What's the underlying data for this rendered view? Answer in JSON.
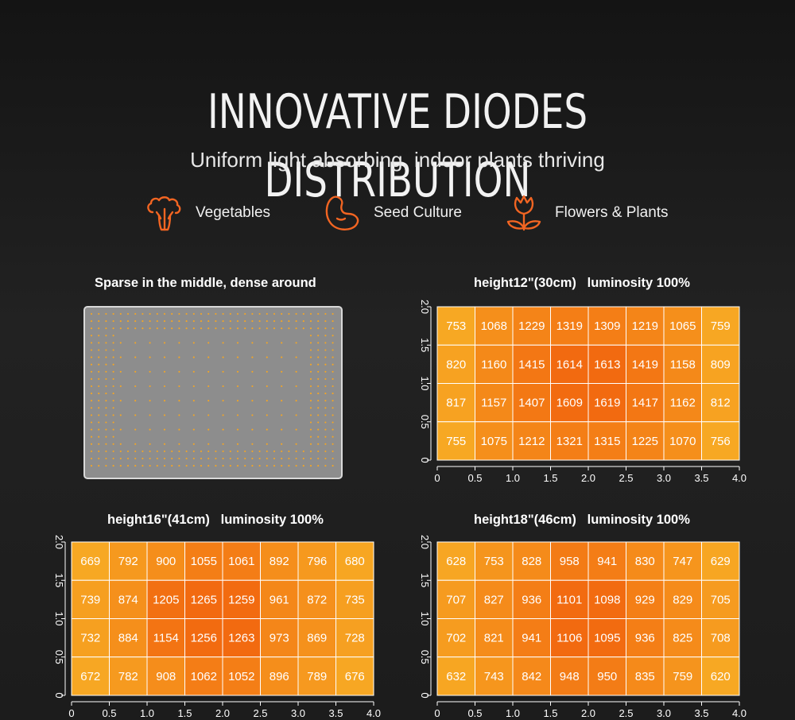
{
  "header": {
    "title": "INNOVATIVE DIODES DISTRIBUTION",
    "subtitle": "Uniform light absorbing, indoor plants thriving"
  },
  "features": [
    {
      "icon": "broccoli-icon",
      "label": "Vegetables"
    },
    {
      "icon": "bean-seed-icon",
      "label": "Seed Culture"
    },
    {
      "icon": "tulip-flower-icon",
      "label": "Flowers & Plants"
    }
  ],
  "colors": {
    "accent": "#f26522",
    "cell_low": "#f7a823",
    "cell_high": "#f26a10",
    "panel": "#8d8d8d",
    "diode": "#f5a623"
  },
  "diode_panel": {
    "title": "Sparse in the middle, dense around"
  },
  "chart_data": [
    {
      "type": "heatmap",
      "title": "height12\"(30cm)   luminosity 100%",
      "xlim": [
        0,
        4.0
      ],
      "ylim": [
        0,
        2.0
      ],
      "xticks": [
        "0",
        "0.5",
        "1.0",
        "1.5",
        "2.0",
        "2.5",
        "3.0",
        "3.5",
        "4.0"
      ],
      "yticks": [
        "0",
        "0.5",
        "1.0",
        "1.5",
        "2.0"
      ],
      "values": [
        [
          753,
          1068,
          1229,
          1319,
          1309,
          1219,
          1065,
          759
        ],
        [
          820,
          1160,
          1415,
          1614,
          1613,
          1419,
          1158,
          809
        ],
        [
          817,
          1157,
          1407,
          1609,
          1619,
          1417,
          1162,
          812
        ],
        [
          755,
          1075,
          1212,
          1321,
          1315,
          1225,
          1070,
          756
        ]
      ]
    },
    {
      "type": "heatmap",
      "title": "height16\"(41cm)   luminosity 100%",
      "xlim": [
        0,
        4.0
      ],
      "ylim": [
        0,
        2.0
      ],
      "xticks": [
        "0",
        "0.5",
        "1.0",
        "1.5",
        "2.0",
        "2.5",
        "3.0",
        "3.5",
        "4.0"
      ],
      "yticks": [
        "0",
        "0.5",
        "1.0",
        "1.5",
        "2.0"
      ],
      "values": [
        [
          669,
          792,
          900,
          1055,
          1061,
          892,
          796,
          680
        ],
        [
          739,
          874,
          1205,
          1265,
          1259,
          961,
          872,
          735
        ],
        [
          732,
          884,
          1154,
          1256,
          1263,
          973,
          869,
          728
        ],
        [
          672,
          782,
          908,
          1062,
          1052,
          896,
          789,
          676
        ]
      ]
    },
    {
      "type": "heatmap",
      "title": "height18\"(46cm)   luminosity 100%",
      "xlim": [
        0,
        4.0
      ],
      "ylim": [
        0,
        2.0
      ],
      "xticks": [
        "0",
        "0.5",
        "1.0",
        "1.5",
        "2.0",
        "2.5",
        "3.0",
        "3.5",
        "4.0"
      ],
      "yticks": [
        "0",
        "0.5",
        "1.0",
        "1.5",
        "2.0"
      ],
      "values": [
        [
          628,
          753,
          828,
          958,
          941,
          830,
          747,
          629
        ],
        [
          707,
          827,
          936,
          1101,
          1098,
          929,
          829,
          705
        ],
        [
          702,
          821,
          941,
          1106,
          1095,
          936,
          825,
          708
        ],
        [
          632,
          743,
          842,
          948,
          950,
          835,
          759,
          620
        ]
      ]
    }
  ]
}
